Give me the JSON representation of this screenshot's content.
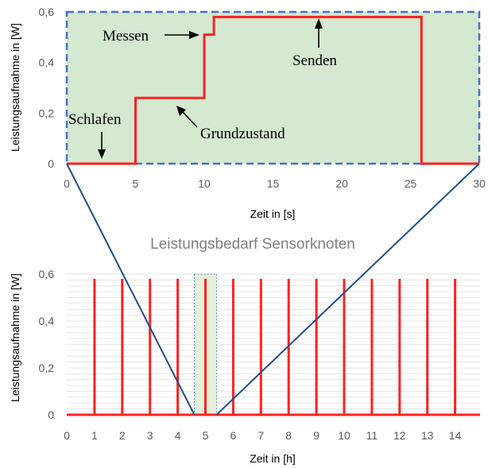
{
  "chart_data": [
    {
      "type": "line",
      "title": "",
      "xlabel": "Zeit in [s]",
      "ylabel": "Leistungsaufnahme in [W]",
      "xlim": [
        0,
        30
      ],
      "ylim": [
        0,
        0.6
      ],
      "x_ticks": [
        "0",
        "5",
        "10",
        "15",
        "20",
        "25",
        "30"
      ],
      "y_ticks": [
        "0",
        "0,2",
        "0,4",
        "0,6"
      ],
      "series": [
        {
          "color": "#ff2020",
          "x": [
            0,
            5,
            5,
            10,
            10,
            10.7,
            10.7,
            25.8,
            25.8,
            30
          ],
          "y": [
            0,
            0,
            0.26,
            0.26,
            0.51,
            0.51,
            0.58,
            0.58,
            0,
            0
          ]
        }
      ],
      "background_color": "#d5e8d0",
      "border_color": "#4472c4",
      "annotations": [
        {
          "text": "Schlafen"
        },
        {
          "text": "Messen"
        },
        {
          "text": "Senden"
        },
        {
          "text": "Grundzustand"
        }
      ]
    },
    {
      "type": "line",
      "title": "Leistungsbedarf Sensorknoten",
      "xlabel": "Zeit in [h]",
      "ylabel": "Leistungsaufnahme in [W]",
      "xlim": [
        0,
        14.9
      ],
      "ylim": [
        0,
        0.6
      ],
      "x_ticks": [
        "0",
        "1",
        "2",
        "3",
        "4",
        "5",
        "6",
        "7",
        "8",
        "9",
        "10",
        "11",
        "12",
        "13",
        "14"
      ],
      "y_ticks": [
        "0",
        "0,2",
        "0,4",
        "0,6"
      ],
      "series": [
        {
          "color": "#ff2020",
          "pulse_peak": 0.58,
          "pulse_times_h": [
            1,
            2,
            3,
            4,
            5,
            6,
            7,
            8,
            9,
            10,
            11,
            12,
            13,
            14
          ]
        }
      ],
      "zoom_highlight_range_h": [
        4.6,
        5.4
      ],
      "zoom_line_color": "#1f4e8c"
    }
  ]
}
